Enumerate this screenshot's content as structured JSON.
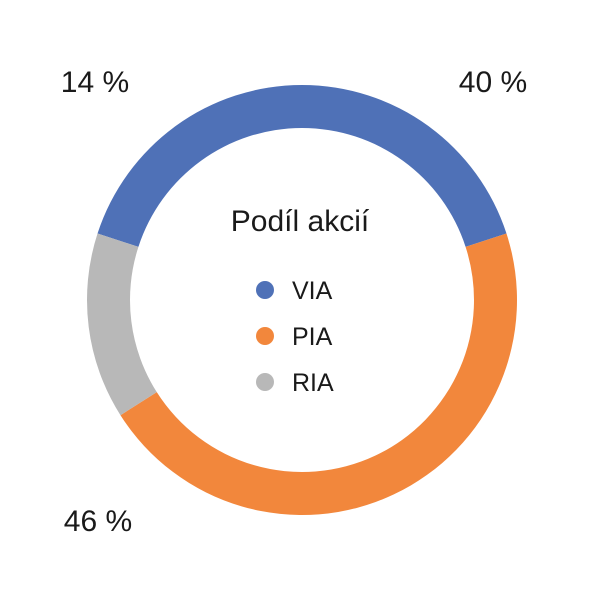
{
  "chart_data": {
    "type": "pie",
    "variant": "donut",
    "title": "Podíl akcií",
    "legend_position": "center",
    "categories": [
      "VIA",
      "PIA",
      "RIA"
    ],
    "values": [
      40,
      46,
      14
    ],
    "labels": [
      "40 %",
      "46 %",
      "14 %"
    ],
    "colors": [
      "#4f71b7",
      "#f2873c",
      "#b8b8b8"
    ]
  }
}
